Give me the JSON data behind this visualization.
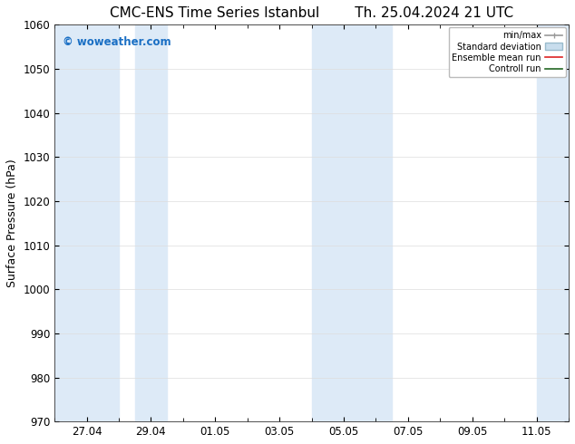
{
  "title_left": "CMC-ENS Time Series Istanbul",
  "title_right": "Th. 25.04.2024 21 UTC",
  "ylabel": "Surface Pressure (hPa)",
  "ylim": [
    970,
    1060
  ],
  "yticks": [
    970,
    980,
    990,
    1000,
    1010,
    1020,
    1030,
    1040,
    1050,
    1060
  ],
  "xlabel_dates": [
    "27.04",
    "29.04",
    "01.05",
    "03.05",
    "05.05",
    "07.05",
    "09.05",
    "11.05"
  ],
  "shaded_color": "#ddeaf7",
  "watermark": "© woweather.com",
  "watermark_color": "#1a6fc4",
  "background_color": "#ffffff",
  "title_fontsize": 11,
  "tick_fontsize": 8.5,
  "ylabel_fontsize": 9
}
